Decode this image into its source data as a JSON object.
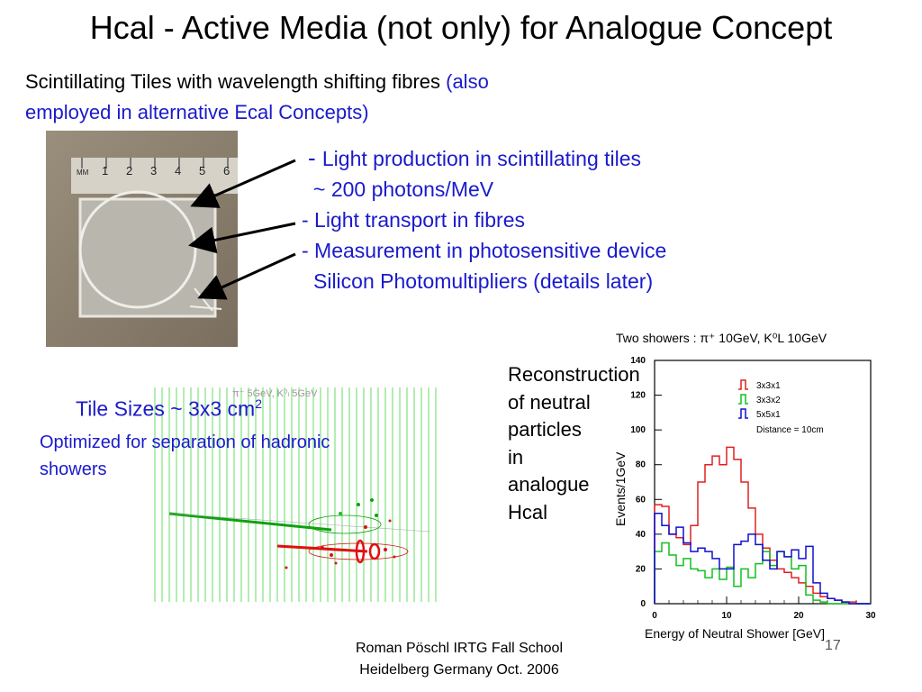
{
  "slide": {
    "title": "Hcal - Active Media (not only) for Analogue Concept",
    "intro_black": "Scintillating Tiles with wavelength shifting fibres ",
    "intro_blue_1": "(also",
    "intro_blue_2": "employed in alternative Ecal Concepts)",
    "bullets": [
      {
        "dash": "- ",
        "text": "Light production in scintillating tiles"
      },
      {
        "text": "~ 200 photons/MeV"
      },
      {
        "text": "- Light transport in fibres"
      },
      {
        "text": "- Measurement in photosensitive device"
      },
      {
        "text": "Silicon Photomultipliers (details later)"
      }
    ],
    "tile_sizes_label": "Tile Sizes ~ 3x3 cm",
    "tile_sizes_sup": "2",
    "tile_desc": "Optimized for separation of hadronic showers",
    "recon_lines": [
      "Reconstruction",
      "of neutral",
      "particles",
      "in",
      "analogue",
      "Hcal"
    ],
    "footer_line1": "Roman Pöschl IRTG Fall School",
    "footer_line2": "Heidelberg Germany Oct. 2006",
    "page_number": "17"
  },
  "photo": {
    "ruler_label": "MM",
    "ruler_numbers": [
      "1",
      "2",
      "3",
      "4",
      "5",
      "6"
    ]
  },
  "event_display": {
    "label": "π⁻ 5GeV, K⁰ₗ 5GeV"
  },
  "chart_data": {
    "type": "line",
    "title": "Two showers : π⁺ 10GeV, K⁰L 10GeV",
    "xlabel": "Energy of Neutral Shower [GeV]",
    "ylabel": "Events/1GeV",
    "xlim": [
      0,
      30
    ],
    "ylim": [
      0,
      140
    ],
    "xticks": [
      "0",
      "10",
      "20",
      "30"
    ],
    "yticks": [
      "0",
      "20",
      "40",
      "60",
      "80",
      "100",
      "120",
      "140"
    ],
    "x": [
      0,
      1,
      2,
      3,
      4,
      5,
      6,
      7,
      8,
      9,
      10,
      11,
      12,
      13,
      14,
      15,
      16,
      17,
      18,
      19,
      20,
      21,
      22,
      23,
      24,
      25,
      26,
      27,
      28,
      29
    ],
    "series": [
      {
        "name": "3x3x1",
        "color": "#e02020",
        "values": [
          57,
          56,
          40,
          38,
          34,
          45,
          70,
          80,
          85,
          80,
          90,
          83,
          70,
          55,
          40,
          32,
          25,
          20,
          18,
          15,
          12,
          10,
          6,
          4,
          3,
          2,
          1,
          1,
          0,
          0
        ]
      },
      {
        "name": "3x3x2",
        "color": "#10c020",
        "values": [
          30,
          35,
          28,
          22,
          26,
          20,
          19,
          15,
          20,
          14,
          21,
          10,
          20,
          15,
          23,
          30,
          22,
          30,
          27,
          20,
          22,
          5,
          2,
          1,
          0,
          0,
          0,
          0,
          0,
          0
        ]
      },
      {
        "name": "5x5x1",
        "color": "#1010d0",
        "values": [
          52,
          45,
          40,
          44,
          35,
          30,
          32,
          30,
          26,
          20,
          20,
          34,
          36,
          40,
          34,
          25,
          20,
          30,
          27,
          31,
          26,
          33,
          12,
          6,
          3,
          2,
          1,
          0,
          0,
          0
        ]
      }
    ],
    "legend_note": "Distance = 10cm",
    "legend_placement": "top-right"
  }
}
